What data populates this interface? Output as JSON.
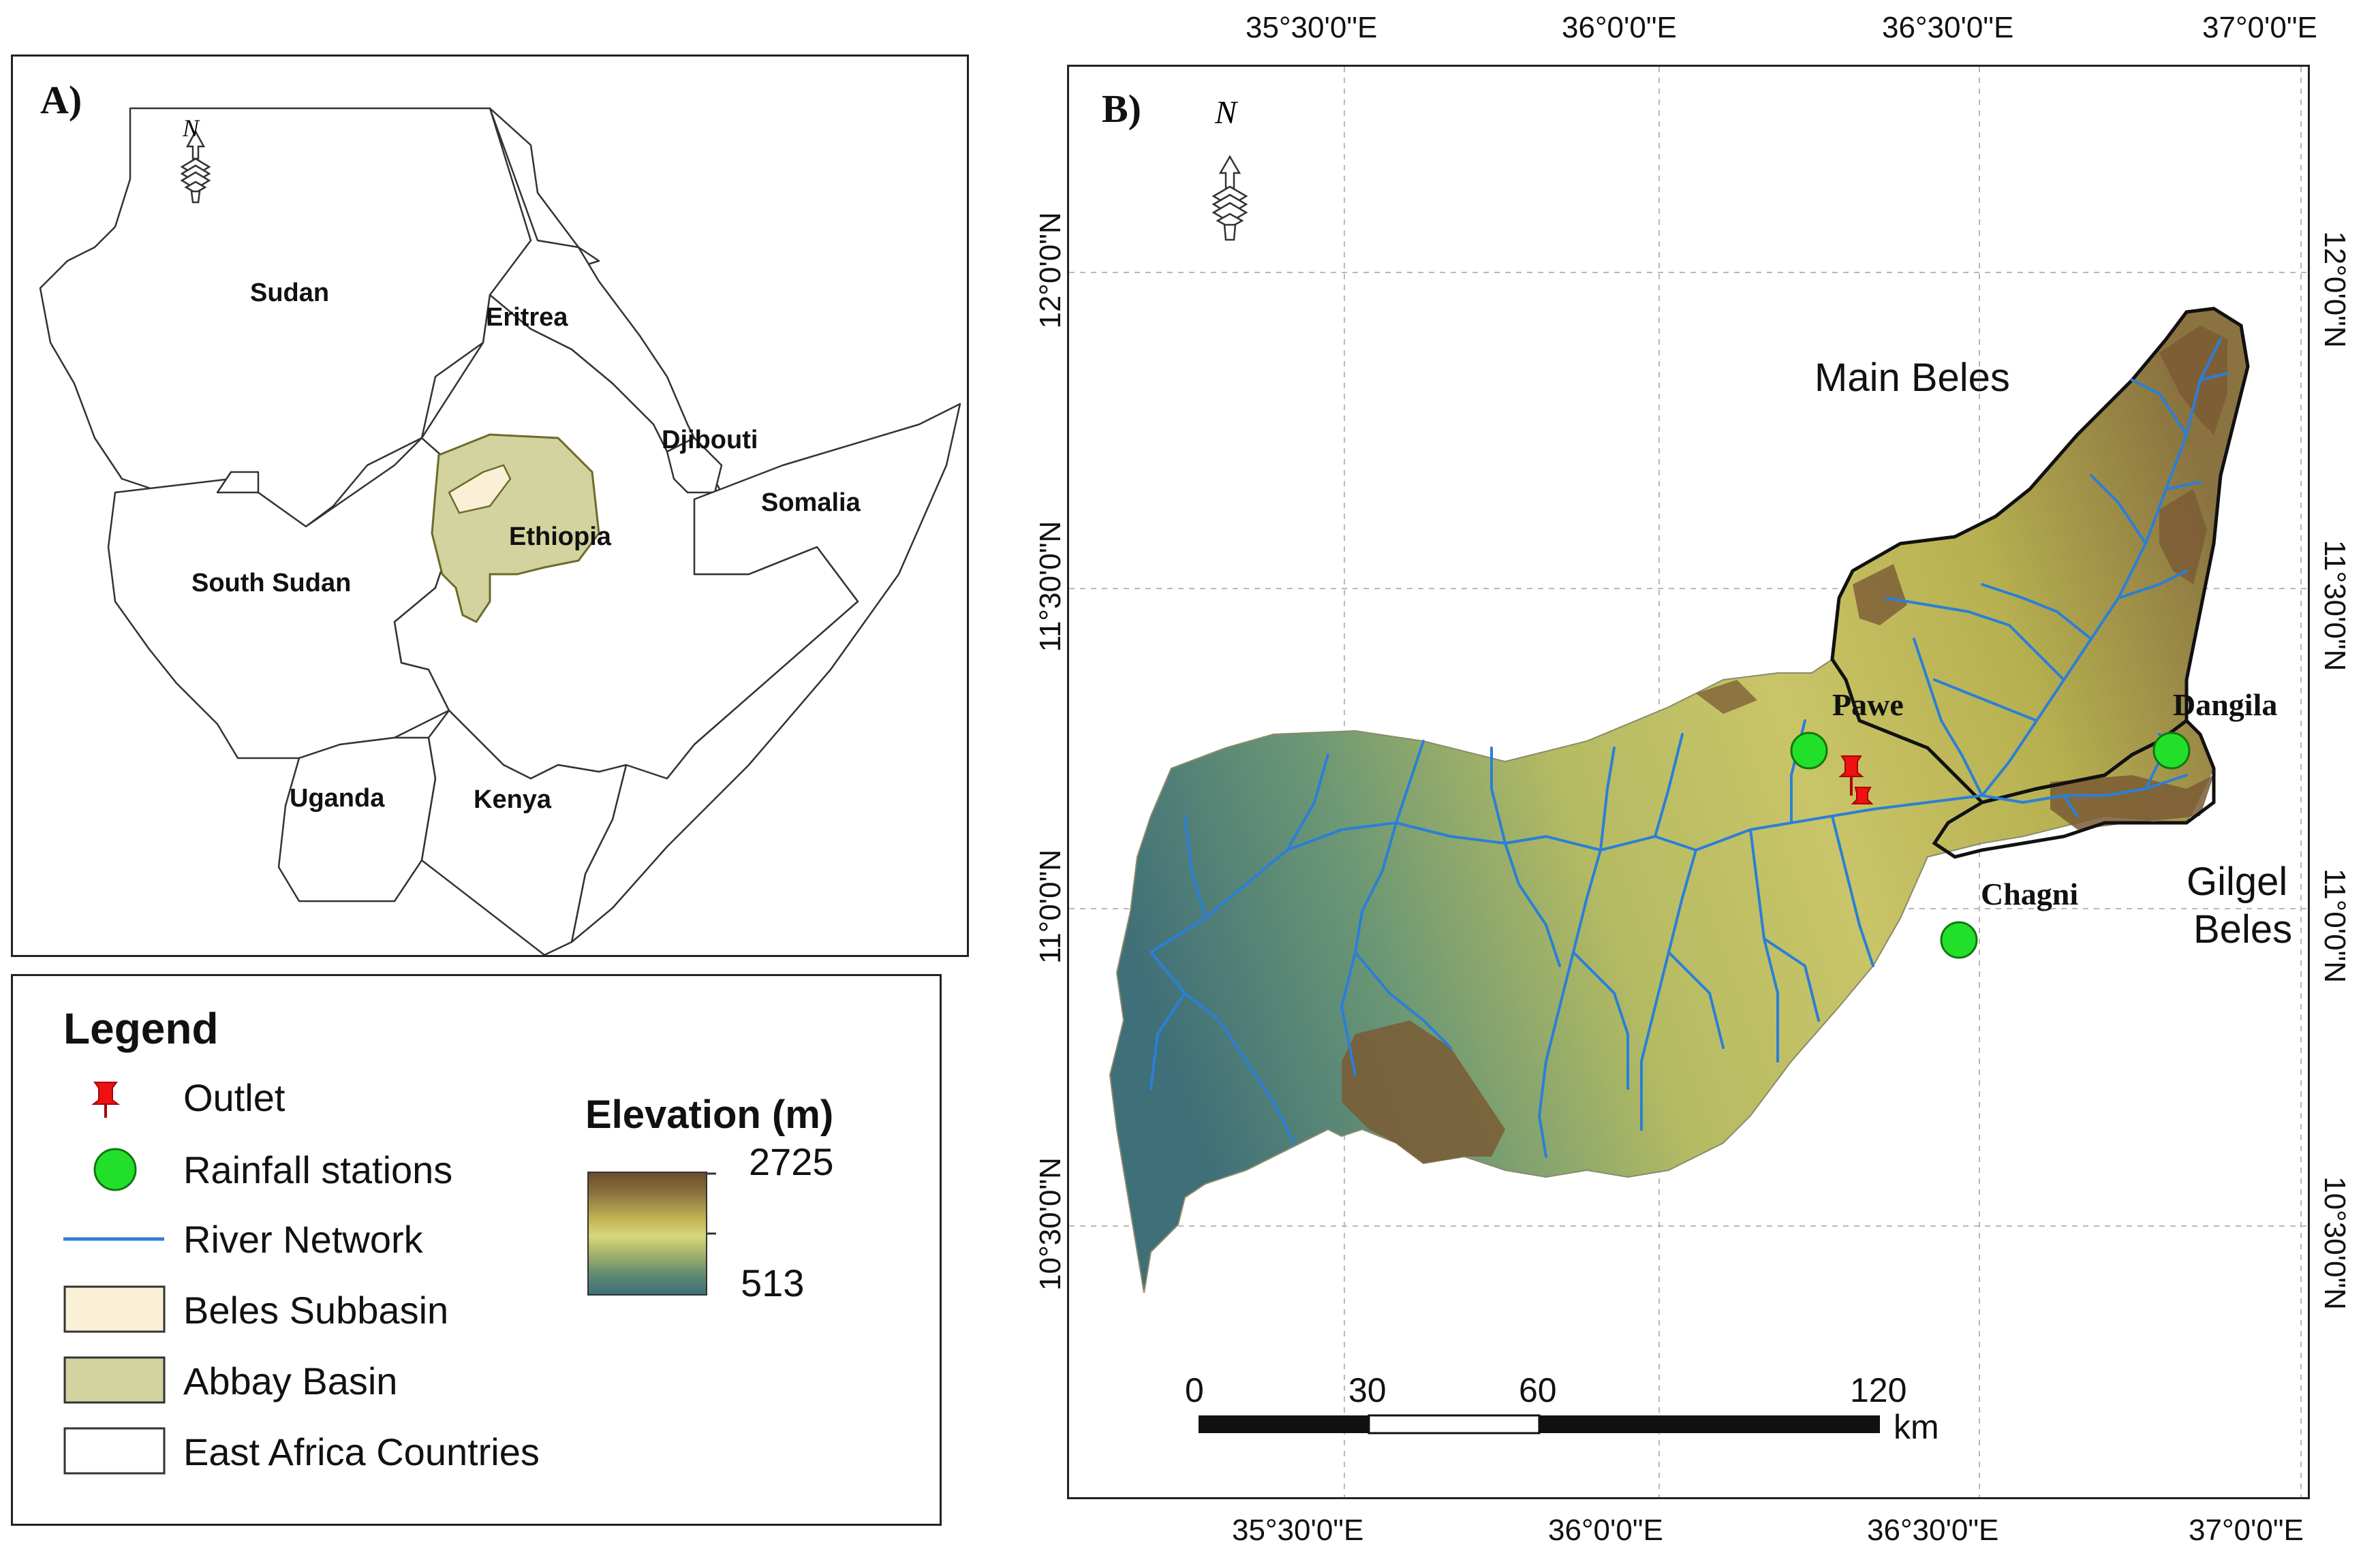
{
  "panel_a": {
    "label": "A)",
    "north": "N",
    "countries": [
      {
        "name": "Sudan"
      },
      {
        "name": "Eritrea"
      },
      {
        "name": "Djibouti"
      },
      {
        "name": "Somalia"
      },
      {
        "name": "Ethiopia"
      },
      {
        "name": "South Sudan"
      },
      {
        "name": "Uganda"
      },
      {
        "name": "Kenya"
      }
    ]
  },
  "legend": {
    "title": "Legend",
    "items": [
      {
        "label": "Outlet",
        "symbol": "outlet-icon"
      },
      {
        "label": "Rainfall stations",
        "symbol": "green-circle"
      },
      {
        "label": "River Network",
        "symbol": "blue-line"
      },
      {
        "label": "Beles Subbasin",
        "symbol": "cream-box"
      },
      {
        "label": "Abbay Basin",
        "symbol": "olive-box"
      },
      {
        "label": "East Africa Countries",
        "symbol": "white-box"
      }
    ],
    "elevation": {
      "title": "Elevation (m)",
      "max": "2725",
      "min": "513",
      "colors": [
        "#6b4a2a",
        "#8a7340",
        "#c2b352",
        "#d7d77c",
        "#9fb06a",
        "#5b8873",
        "#3f6f78"
      ]
    }
  },
  "panel_b": {
    "label": "B)",
    "north": "N",
    "top_ticks": [
      "35°30'0\"E",
      "36°0'0\"E",
      "36°30'0\"E",
      "37°0'0\"E"
    ],
    "bottom_ticks": [
      "35°30'0\"E",
      "36°0'0\"E",
      "36°30'0\"E",
      "37°0'0\"E"
    ],
    "left_ticks": [
      "12°0'0\"N",
      "11°30'0\"N",
      "11°0'0\"N",
      "10°30'0\"N"
    ],
    "right_ticks": [
      "12°0'0\"N",
      "11°30'0\"N",
      "11°0'0\"N",
      "10°30'0\"N"
    ],
    "basin_labels": {
      "main": "Main Beles",
      "gilgel_line1": "Gilgel",
      "gilgel_line2": "Beles"
    },
    "stations": [
      {
        "name": "Pawe"
      },
      {
        "name": "Dangila"
      },
      {
        "name": "Chagni"
      }
    ],
    "scale": {
      "ticks": [
        "0",
        "30",
        "60",
        "120"
      ],
      "unit": "km"
    },
    "colors": {
      "river": "#2b7fd6",
      "station": "#22e02a",
      "outlet": "#ee1111"
    }
  }
}
